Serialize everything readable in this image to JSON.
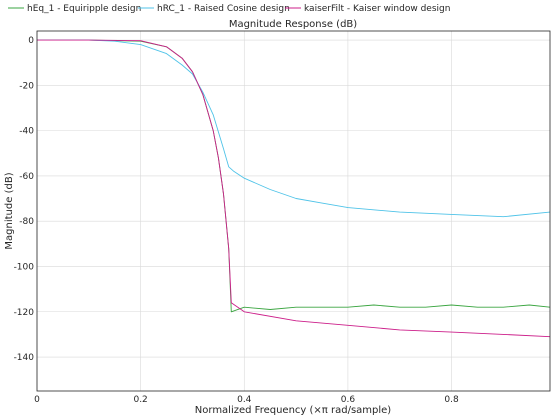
{
  "chart_data": {
    "type": "line",
    "title": "Magnitude Response (dB)",
    "xlabel": "Normalized Frequency (×π rad/sample)",
    "ylabel": "Magnitude (dB)",
    "xlim": [
      0,
      0.99
    ],
    "ylim": [
      -155,
      4
    ],
    "xticks": [
      {
        "value": 0,
        "label": "0"
      },
      {
        "value": 0.2,
        "label": "0.2"
      },
      {
        "value": 0.4,
        "label": "0.4"
      },
      {
        "value": 0.6,
        "label": "0.6"
      },
      {
        "value": 0.8,
        "label": "0.8"
      }
    ],
    "yticks": [
      {
        "value": 0,
        "label": "0"
      },
      {
        "value": -20,
        "label": "-20"
      },
      {
        "value": -40,
        "label": "-40"
      },
      {
        "value": -60,
        "label": "-60"
      },
      {
        "value": -80,
        "label": "-80"
      },
      {
        "value": -100,
        "label": "-100"
      },
      {
        "value": -120,
        "label": "-120"
      },
      {
        "value": -140,
        "label": "-140"
      }
    ],
    "grid": true,
    "legend_position": "top",
    "series": [
      {
        "name": "hEq_1 - Equiripple design",
        "color": "#3aa540",
        "x": [
          0,
          0.1,
          0.2,
          0.25,
          0.28,
          0.3,
          0.32,
          0.34,
          0.35,
          0.36,
          0.37,
          0.375,
          0.4,
          0.45,
          0.5,
          0.55,
          0.6,
          0.65,
          0.7,
          0.75,
          0.8,
          0.85,
          0.9,
          0.95,
          0.99
        ],
        "y": [
          0,
          0,
          -0.5,
          -3,
          -8,
          -14,
          -24,
          -40,
          -52,
          -68,
          -92,
          -120,
          -118,
          -119,
          -118,
          -118,
          -118,
          -117,
          -118,
          -118,
          -117,
          -118,
          -118,
          -117,
          -118
        ]
      },
      {
        "name": "hRC_1 - Raised Cosine design",
        "color": "#4fc3e8",
        "x": [
          0,
          0.1,
          0.15,
          0.2,
          0.25,
          0.28,
          0.3,
          0.32,
          0.34,
          0.36,
          0.37,
          0.38,
          0.4,
          0.45,
          0.5,
          0.55,
          0.6,
          0.7,
          0.8,
          0.9,
          0.99
        ],
        "y": [
          0,
          0,
          -0.5,
          -2,
          -6,
          -11,
          -15,
          -23,
          -33,
          -48,
          -56,
          -58,
          -61,
          -66,
          -70,
          -72,
          -74,
          -76,
          -77,
          -78,
          -76
        ]
      },
      {
        "name": "kaiserFilt - Kaiser window design",
        "color": "#cc1f8a",
        "x": [
          0,
          0.1,
          0.2,
          0.25,
          0.28,
          0.3,
          0.32,
          0.34,
          0.35,
          0.36,
          0.37,
          0.375,
          0.4,
          0.5,
          0.6,
          0.7,
          0.8,
          0.9,
          0.99
        ],
        "y": [
          0,
          0,
          -0.3,
          -3,
          -8,
          -14,
          -24,
          -40,
          -52,
          -68,
          -92,
          -116,
          -120,
          -124,
          -126,
          -128,
          -129,
          -130,
          -131
        ]
      }
    ]
  }
}
